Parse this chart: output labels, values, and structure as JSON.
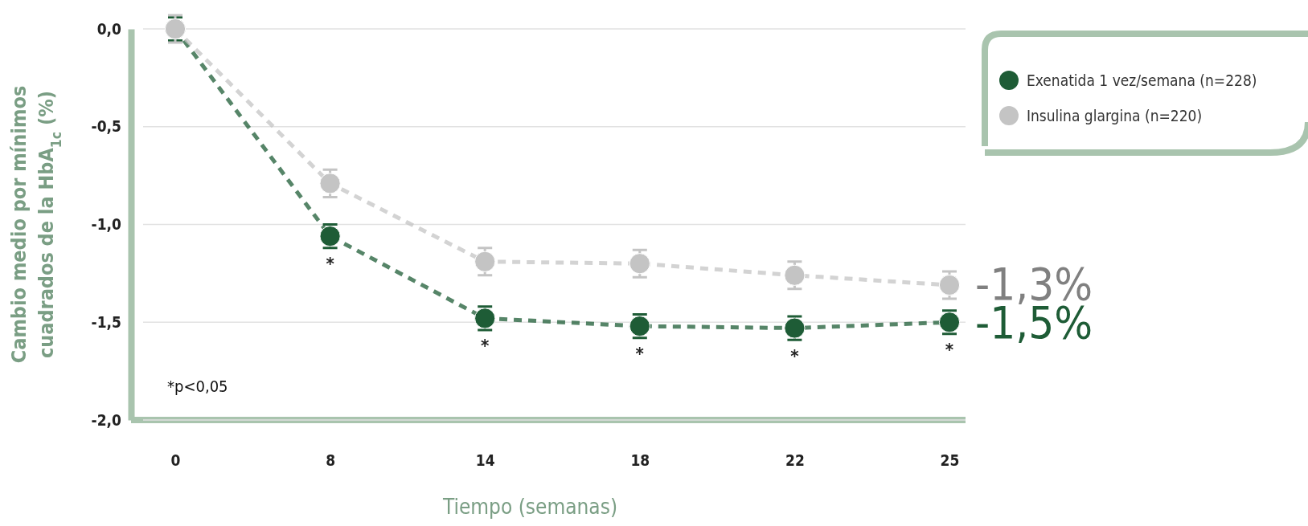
{
  "chart_data": {
    "type": "line",
    "xlabel": "Tiempo (semanas)",
    "ylabel": "Cambio medio por mínimos cuadrados de la HbA$_{1c}$ (%)",
    "categories": [
      "0",
      "8",
      "14",
      "18",
      "22",
      "25"
    ],
    "series": [
      {
        "name": "Exenatida 1 vez/semana (n=228)",
        "color": "#1e5c36",
        "values": [
          0.0,
          -1.06,
          -1.48,
          -1.52,
          -1.53,
          -1.5
        ],
        "errors": [
          0.06,
          0.06,
          0.06,
          0.06,
          0.06,
          0.06
        ]
      },
      {
        "name": "Insulina glargina (n=220)",
        "color": "#c4c4c4",
        "values": [
          0.0,
          -0.79,
          -1.19,
          -1.2,
          -1.26,
          -1.31
        ],
        "errors": [
          0.07,
          0.07,
          0.07,
          0.07,
          0.07,
          0.07
        ]
      }
    ],
    "ylim": [
      -2.0,
      0.0
    ],
    "yticks": [
      {
        "value": -2.0,
        "label": "-2,0"
      },
      {
        "value": -1.5,
        "label": "-1,5"
      },
      {
        "value": -1.0,
        "label": "-1,0"
      },
      {
        "value": -0.5,
        "label": "-0,5"
      },
      {
        "value": 0.0,
        "label": "0,0"
      }
    ],
    "grid": "y",
    "legend": "top right",
    "marker": "circle",
    "line_style": "dashed",
    "annotations": [
      {
        "text": "*",
        "x": "8",
        "y": -1.06
      },
      {
        "text": "*",
        "x": "14",
        "y": -1.48
      },
      {
        "text": "*",
        "x": "18",
        "y": -1.52
      },
      {
        "text": "*",
        "x": "22",
        "y": -1.53
      },
      {
        "text": "*",
        "x": "25",
        "y": -1.5
      },
      {
        "text": "-1,3%",
        "x": "25",
        "y": -1.3
      },
      {
        "text": "-1,5%",
        "x": "25",
        "y": -1.5
      },
      "*p<0,05"
    ]
  }
}
